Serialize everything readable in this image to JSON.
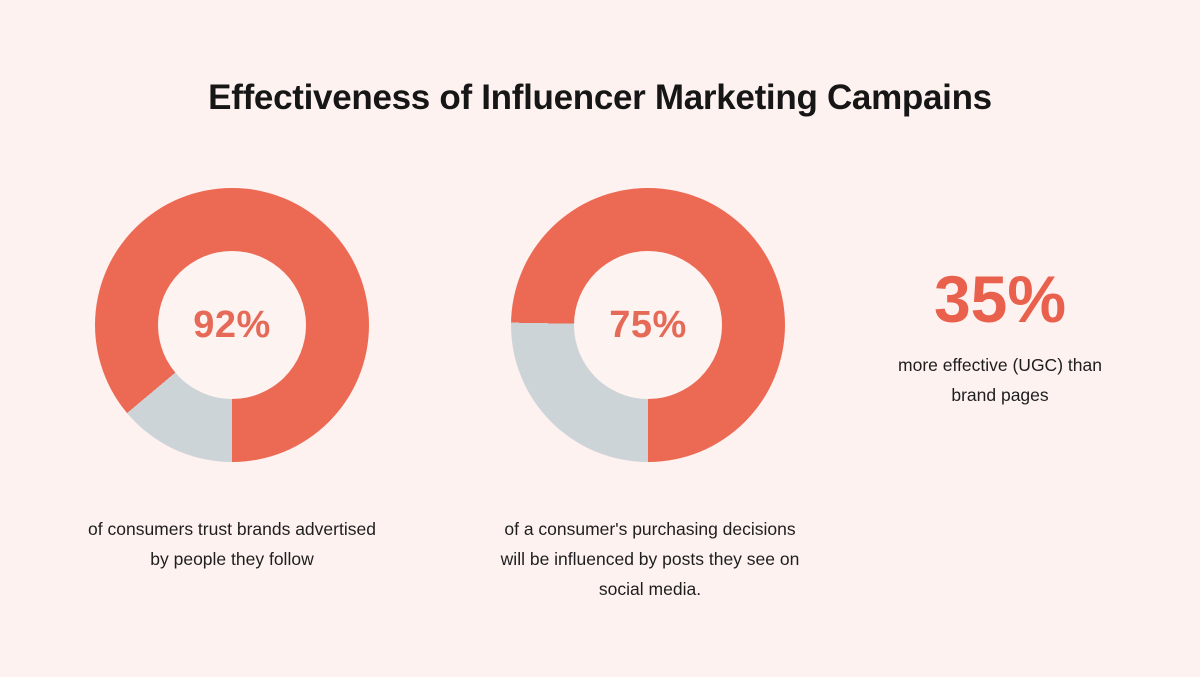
{
  "title": "Effectiveness of Influencer Marketing Campains",
  "colors": {
    "background": "#FDF2F0",
    "accent_coral": "#EC6A54",
    "muted_gray": "#CDD4D8",
    "stat_coral": "#E9604C",
    "text_dark": "#1E1E1E",
    "donut_hole": "#FDF3F1"
  },
  "chart_data": [
    {
      "type": "pie",
      "variant": "donut",
      "value": 92,
      "value_label": "92%",
      "slices": [
        {
          "label": "consumers who trust brands advertised by people they follow",
          "value": 92,
          "color": "#EC6A54"
        },
        {
          "label": "remainder",
          "value": 8,
          "color": "#CDD4D8"
        }
      ],
      "caption": "of consumers trust brands advertised by people they follow",
      "caption_lines": [
        "of consumers trust brands advertised",
        "by people they follow"
      ],
      "legend": "none",
      "remainder_arc_deg": [
        180,
        230
      ]
    },
    {
      "type": "pie",
      "variant": "donut",
      "value": 75,
      "value_label": "75%",
      "slices": [
        {
          "label": "purchasing decisions influenced by social media posts",
          "value": 75,
          "color": "#EC6A54"
        },
        {
          "label": "remainder",
          "value": 25,
          "color": "#CDD4D8"
        }
      ],
      "caption": "of a consumer's purchasing decisions will be influenced by posts they see on social media.",
      "caption_lines": [
        "of a consumer's purchasing decisions",
        "will be influenced by posts they see on",
        "social media."
      ],
      "legend": "none",
      "remainder_arc_deg": [
        180,
        271
      ]
    }
  ],
  "stat": {
    "value_label": "35%",
    "caption": "more effective (UGC) than brand pages",
    "caption_lines": [
      "more effective (UGC) than",
      "brand pages"
    ]
  }
}
